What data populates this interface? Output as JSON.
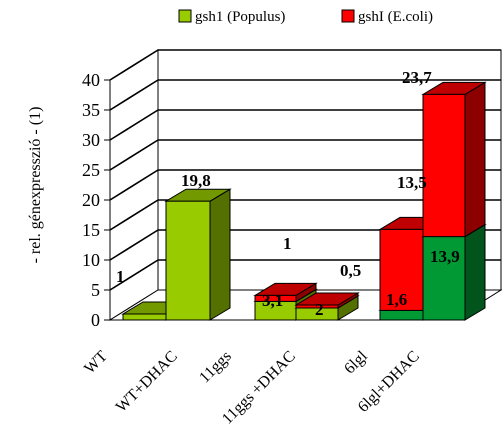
{
  "chart_data": {
    "type": "bar",
    "subtype": "3d-stacked-column",
    "ylabel": "- rel. génexpresszió - (1)",
    "ylim": [
      0,
      40
    ],
    "yticks": [
      "0",
      "5",
      "10",
      "15",
      "20",
      "25",
      "30",
      "35",
      "40"
    ],
    "grid": true,
    "legend_position": "top",
    "categories": [
      "WT",
      "WT+DHAC",
      "11ggs",
      "11ggs +DHAC",
      "6lgl",
      "6lgl+DHAC"
    ],
    "series": [
      {
        "name": "gsh1 (Populus)",
        "color": "#99cc00",
        "dark_color": "#009933",
        "values": [
          1,
          19.8,
          3.1,
          2,
          1.6,
          13.9
        ]
      },
      {
        "name": "gshI (E.coli)",
        "color": "#ff0000",
        "values": [
          0,
          0,
          1,
          0.5,
          13.5,
          23.7
        ]
      }
    ],
    "data_labels": [
      "1",
      "19,8",
      "3,1",
      "1",
      "2",
      "0,5",
      "1,6",
      "13,5",
      "13,9",
      "23,7"
    ]
  }
}
